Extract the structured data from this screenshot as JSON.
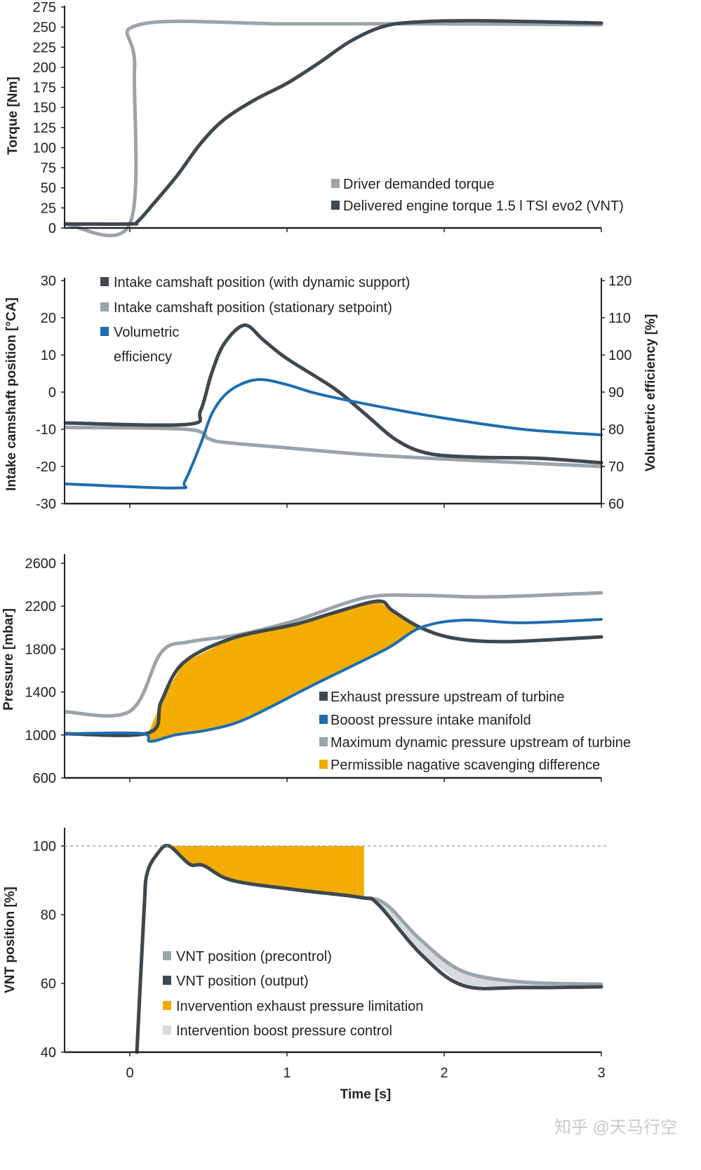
{
  "colors": {
    "dark": "#3e484e",
    "gray": "#9ba4a9",
    "blue": "#1e6db0",
    "orange": "#f3ad00",
    "lightfill": "#d6dbde"
  },
  "x_axis": {
    "label": "Time [s]",
    "xlim": [
      -0.41,
      3
    ],
    "ticks": [
      0,
      1,
      2,
      3
    ],
    "tick_labels": [
      "0",
      "1",
      "2",
      "3"
    ]
  },
  "watermark": "知乎 @天马行空",
  "chart_data": [
    {
      "type": "line",
      "ylabel": "Torque [Nm]",
      "ylim": [
        0,
        275
      ],
      "y_ticks": [
        0,
        25,
        50,
        75,
        100,
        125,
        150,
        175,
        200,
        225,
        250,
        275
      ],
      "series": [
        {
          "name": "Driver demanded torque",
          "color": "gray",
          "points": [
            [
              -0.41,
              5
            ],
            [
              0,
              5
            ],
            [
              0.03,
              200
            ],
            [
              0.06,
              253
            ],
            [
              1,
              254
            ],
            [
              2,
              254
            ],
            [
              3,
              253
            ]
          ]
        },
        {
          "name": "Delivered engine torque 1.5 l TSI evo2 (VNT)",
          "color": "dark",
          "points": [
            [
              -0.41,
              5
            ],
            [
              0,
              5
            ],
            [
              0.05,
              8
            ],
            [
              0.15,
              30
            ],
            [
              0.3,
              65
            ],
            [
              0.45,
              105
            ],
            [
              0.6,
              135
            ],
            [
              0.8,
              160
            ],
            [
              1.0,
              180
            ],
            [
              1.2,
              205
            ],
            [
              1.4,
              232
            ],
            [
              1.6,
              250
            ],
            [
              1.8,
              256
            ],
            [
              2.2,
              258
            ],
            [
              3,
              255
            ]
          ]
        }
      ]
    },
    {
      "type": "line",
      "ylabel": "Intake camshaft position [°CA]",
      "ylim": [
        -30,
        30
      ],
      "y_ticks": [
        -30,
        -20,
        -10,
        0,
        10,
        20,
        30
      ],
      "y2label": "Volumetric efficiency [%]",
      "y2lim": [
        60,
        120
      ],
      "y2_ticks": [
        60,
        70,
        80,
        90,
        100,
        110,
        120
      ],
      "series": [
        {
          "name": "Intake camshaft position (with dynamic support)",
          "color": "dark",
          "points": [
            [
              -0.41,
              -8.3
            ],
            [
              0.36,
              -8.7
            ],
            [
              0.45,
              -5
            ],
            [
              0.52,
              5
            ],
            [
              0.6,
              13
            ],
            [
              0.73,
              18
            ],
            [
              0.85,
              14
            ],
            [
              1.0,
              9
            ],
            [
              1.3,
              1
            ],
            [
              1.5,
              -6
            ],
            [
              1.7,
              -13
            ],
            [
              1.9,
              -16.5
            ],
            [
              2.2,
              -17.5
            ],
            [
              2.6,
              -17.8
            ],
            [
              3,
              -19
            ]
          ]
        },
        {
          "name": "Intake camshaft position (stationary setpoint)",
          "color": "gray",
          "points": [
            [
              -0.41,
              -9.5
            ],
            [
              0.36,
              -10
            ],
            [
              0.5,
              -12.5
            ],
            [
              0.6,
              -13.5
            ],
            [
              1.0,
              -15
            ],
            [
              1.5,
              -16.8
            ],
            [
              2.0,
              -18
            ],
            [
              3,
              -20
            ]
          ]
        },
        {
          "name": "Volumetric efficiency",
          "legend_lines": [
            "Volumetric",
            "efficiency"
          ],
          "color": "blue",
          "axis": "right",
          "points": [
            [
              -0.41,
              65.3
            ],
            [
              0.29,
              64.2
            ],
            [
              0.35,
              66
            ],
            [
              0.45,
              76
            ],
            [
              0.52,
              84
            ],
            [
              0.6,
              89
            ],
            [
              0.7,
              92
            ],
            [
              0.83,
              93.4
            ],
            [
              1.0,
              92
            ],
            [
              1.2,
              89.5
            ],
            [
              1.6,
              86
            ],
            [
              2.0,
              83
            ],
            [
              2.5,
              80
            ],
            [
              3,
              78.5
            ]
          ]
        }
      ]
    },
    {
      "type": "line",
      "ylabel": "Pressure [mbar]",
      "ylim": [
        600,
        2600
      ],
      "y_ticks": [
        600,
        1000,
        1400,
        1800,
        2200,
        2600
      ],
      "series": [
        {
          "name": "Exhaust pressure upstream of turbine",
          "color": "dark",
          "points": [
            [
              -0.41,
              1012
            ],
            [
              0.12,
              1020
            ],
            [
              0.2,
              1312
            ],
            [
              0.34,
              1672
            ],
            [
              0.65,
              1900
            ],
            [
              1.05,
              2030
            ],
            [
              1.3,
              2140
            ],
            [
              1.58,
              2247
            ],
            [
              1.67,
              2160
            ],
            [
              1.85,
              2000
            ],
            [
              2.07,
              1900
            ],
            [
              2.4,
              1870
            ],
            [
              3,
              1914
            ]
          ]
        },
        {
          "name": "Booost pressure intake manifold",
          "color": "blue",
          "points": [
            [
              -0.41,
              1012
            ],
            [
              0.07,
              1015
            ],
            [
              0.13,
              940
            ],
            [
              0.29,
              1000
            ],
            [
              0.51,
              1050
            ],
            [
              0.74,
              1150
            ],
            [
              1.18,
              1475
            ],
            [
              1.63,
              1800
            ],
            [
              1.85,
              2000
            ],
            [
              2.12,
              2070
            ],
            [
              2.5,
              2045
            ],
            [
              3,
              2077
            ]
          ]
        },
        {
          "name": "Maximum dynamic pressure upstream of turbine",
          "color": "gray",
          "points": [
            [
              -0.41,
              1215
            ],
            [
              0,
              1220
            ],
            [
              0.2,
              1770
            ],
            [
              0.38,
              1868
            ],
            [
              0.69,
              1933
            ],
            [
              1.05,
              2065
            ],
            [
              1.5,
              2280
            ],
            [
              1.85,
              2300
            ],
            [
              2.3,
              2287
            ],
            [
              3,
              2325
            ]
          ]
        },
        {
          "name": "Permissible nagative scavenging difference",
          "color": "orange",
          "fill": {
            "upper": "Exhaust pressure upstream of turbine",
            "lower": "Booost pressure intake manifold",
            "range": [
              0.12,
              1.85
            ]
          }
        }
      ]
    },
    {
      "type": "line",
      "ylabel": "VNT position [%]",
      "ylim": [
        40,
        100
      ],
      "y_ticks": [
        40,
        60,
        80,
        100
      ],
      "reference_line": 100,
      "series": [
        {
          "name": "VNT position (precontrol)",
          "color": "gray",
          "points": [
            [
              0.045,
              40
            ],
            [
              0.09,
              80.8
            ],
            [
              0.11,
              92
            ],
            [
              0.18,
              98
            ],
            [
              0.25,
              100
            ],
            [
              0.38,
              94.7
            ],
            [
              0.47,
              94.3
            ],
            [
              0.65,
              90
            ],
            [
              1.05,
              87.3
            ],
            [
              1.47,
              85
            ],
            [
              1.63,
              83
            ],
            [
              1.85,
              72.7
            ],
            [
              2.12,
              63.5
            ],
            [
              2.5,
              60.4
            ],
            [
              3,
              59.8
            ]
          ]
        },
        {
          "name": "VNT position (output)",
          "color": "dark",
          "points": [
            [
              0.045,
              40
            ],
            [
              0.09,
              80.8
            ],
            [
              0.11,
              92
            ],
            [
              0.18,
              98
            ],
            [
              0.25,
              100
            ],
            [
              0.38,
              94.7
            ],
            [
              0.47,
              94.3
            ],
            [
              0.65,
              90
            ],
            [
              1.05,
              87.3
            ],
            [
              1.47,
              85
            ],
            [
              1.58,
              83
            ],
            [
              1.85,
              68.6
            ],
            [
              2.12,
              59.4
            ],
            [
              2.5,
              58.8
            ],
            [
              3,
              59
            ]
          ]
        },
        {
          "name": "Invervention exhaust pressure limitation",
          "color": "orange",
          "fill": {
            "upper": 100,
            "lower": "VNT position (output)",
            "range": [
              0.27,
              1.49
            ]
          }
        },
        {
          "name": "Intervention boost pressure control",
          "color": "lightfill",
          "fill": {
            "upper": "VNT position (output)",
            "lower": "VNT position (precontrol)",
            "range": [
              1.47,
              3
            ]
          }
        }
      ]
    }
  ]
}
